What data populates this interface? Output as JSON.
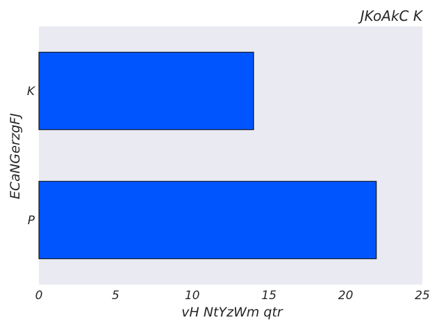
{
  "chart_data": {
    "type": "bar",
    "orientation": "horizontal",
    "title": "JKoAkC K",
    "xlabel": "vH NtYzWm qtr",
    "ylabel": "ECaNGerzgFJ",
    "categories": [
      "P",
      "K"
    ],
    "values": [
      22,
      14
    ],
    "xlim": [
      0,
      25
    ],
    "xticks": [
      "0",
      "5",
      "10",
      "15",
      "20",
      "25"
    ],
    "grid": false,
    "bar_color": "#0055ff",
    "background_color": "#eaeaf2"
  }
}
